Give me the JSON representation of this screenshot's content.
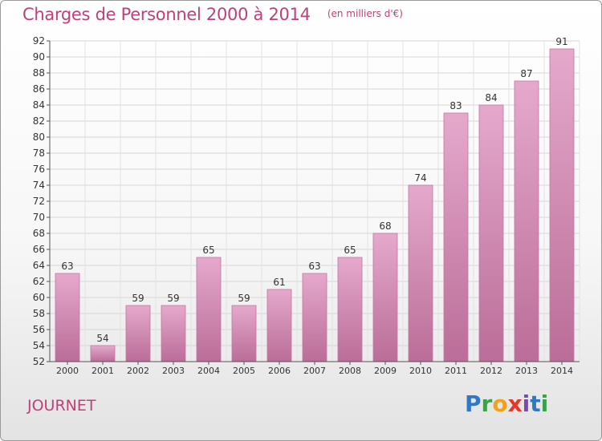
{
  "title": "Charges de Personnel 2000 à 2014",
  "subtitle": "(en milliers d'€)",
  "commune": "JOURNET",
  "logo": {
    "text": "Proxiti",
    "letters": [
      "P",
      "r",
      "o",
      "x",
      "i",
      "t",
      "i"
    ]
  },
  "colors": {
    "title": "#c0407a",
    "bar_top": "#e5a9cc",
    "bar_bottom": "#ba6d98",
    "bar_edge": "#c9729f"
  },
  "chart_data": {
    "type": "bar",
    "categories": [
      "2000",
      "2001",
      "2002",
      "2003",
      "2004",
      "2005",
      "2006",
      "2007",
      "2008",
      "2009",
      "2010",
      "2011",
      "2012",
      "2013",
      "2014"
    ],
    "values": [
      63,
      54,
      59,
      59,
      65,
      59,
      61,
      63,
      65,
      68,
      74,
      83,
      84,
      87,
      91
    ],
    "data_labels": [
      "63",
      "54",
      "59",
      "59",
      "65",
      "59",
      "61",
      "63",
      "65",
      "68",
      "74",
      "83",
      "84",
      "87",
      "91"
    ],
    "ylim": [
      52,
      92
    ],
    "yticks": [
      52,
      54,
      56,
      58,
      60,
      62,
      64,
      66,
      68,
      70,
      72,
      74,
      76,
      78,
      80,
      82,
      84,
      86,
      88,
      90,
      92
    ],
    "ytick_labels": [
      "52",
      "54",
      "56",
      "58",
      "60",
      "62",
      "64",
      "66",
      "68",
      "70",
      "72",
      "74",
      "76",
      "78",
      "80",
      "82",
      "84",
      "86",
      "88",
      "90",
      "92"
    ],
    "grid": true
  }
}
